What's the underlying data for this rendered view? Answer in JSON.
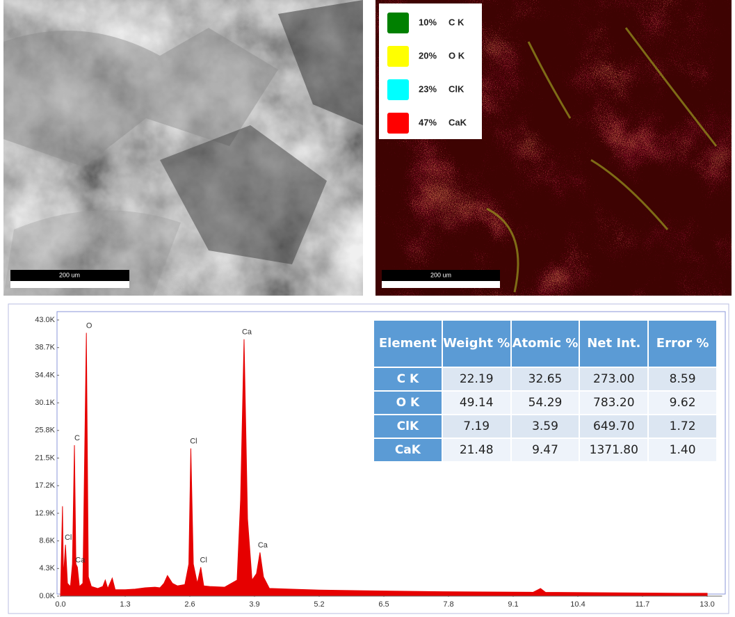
{
  "sem_image": {
    "scale_bar": "200 um"
  },
  "eds_map": {
    "scale_bar": "200 um",
    "legend": [
      {
        "percent": "10%",
        "element": "C K",
        "color": "#008000"
      },
      {
        "percent": "20%",
        "element": "O K",
        "color": "#ffff00"
      },
      {
        "percent": "23%",
        "element": "ClK",
        "color": "#00ffff"
      },
      {
        "percent": "47%",
        "element": "CaK",
        "color": "#ff0000"
      }
    ]
  },
  "chart_data": {
    "type": "area",
    "x": [
      0.0,
      0.04,
      0.06,
      0.1,
      0.14,
      0.2,
      0.24,
      0.28,
      0.31,
      0.34,
      0.38,
      0.45,
      0.52,
      0.56,
      0.62,
      0.75,
      0.85,
      0.9,
      0.95,
      1.04,
      1.1,
      1.3,
      1.5,
      1.7,
      1.9,
      2.0,
      2.08,
      2.15,
      2.25,
      2.35,
      2.5,
      2.58,
      2.62,
      2.67,
      2.75,
      2.82,
      2.88,
      3.0,
      3.3,
      3.55,
      3.62,
      3.69,
      3.76,
      3.85,
      3.94,
      4.01,
      4.08,
      4.2,
      4.6,
      5.2,
      6.0,
      6.5,
      7.5,
      8.5,
      9.5,
      9.65,
      9.75,
      10.5,
      11.5,
      12.5,
      13.0
    ],
    "values": [
      0,
      14000,
      3000,
      8000,
      2000,
      1500,
      5000,
      23500,
      5000,
      4500,
      1500,
      2000,
      41000,
      3000,
      1500,
      1200,
      1500,
      2500,
      1200,
      2800,
      1000,
      1000,
      1100,
      1300,
      1400,
      1300,
      2000,
      3200,
      2000,
      1600,
      1800,
      5000,
      23000,
      5000,
      2000,
      4500,
      1600,
      1500,
      1400,
      2500,
      15000,
      40000,
      12000,
      2500,
      3500,
      6800,
      3000,
      1200,
      1100,
      950,
      850,
      800,
      700,
      650,
      600,
      1200,
      600,
      550,
      500,
      450,
      450
    ],
    "color": "#e60000",
    "xlim": [
      0,
      13.3
    ],
    "ylim": [
      0,
      43000
    ],
    "xticks": [
      {
        "value": 0,
        "label": "0.0"
      },
      1.3,
      2.6,
      3.9,
      5.2,
      6.5,
      7.8,
      9.1,
      10.4,
      11.7,
      {
        "value": 13,
        "label": "13.0"
      }
    ],
    "yticks": [
      {
        "value": 0,
        "label": "0.0K"
      },
      {
        "value": 4300,
        "label": "4.3K"
      },
      {
        "value": 8600,
        "label": "8.6K"
      },
      {
        "value": 12900,
        "label": "12.9K"
      },
      {
        "value": 17200,
        "label": "17.2K"
      },
      {
        "value": 21500,
        "label": "21.5K"
      },
      {
        "value": 25800,
        "label": "25.8K"
      },
      {
        "value": 30100,
        "label": "30.1K"
      },
      {
        "value": 34400,
        "label": "34.4K"
      },
      {
        "value": 38700,
        "label": "38.7K"
      },
      {
        "value": 43000,
        "label": "43.0K"
      }
    ],
    "annotations": [
      {
        "text": "Cl",
        "x": 0.1,
        "y": 8000
      },
      {
        "text": "C",
        "x": 0.28,
        "y": 23500
      },
      {
        "text": "Ca",
        "x": 0.34,
        "y": 4500
      },
      {
        "text": "O",
        "x": 0.52,
        "y": 41000
      },
      {
        "text": "Cl",
        "x": 2.62,
        "y": 23000
      },
      {
        "text": "Cl",
        "x": 2.82,
        "y": 4500
      },
      {
        "text": "Ca",
        "x": 3.69,
        "y": 40000
      },
      {
        "text": "Ca",
        "x": 4.01,
        "y": 6800
      }
    ]
  },
  "table": {
    "header": [
      "Element",
      "Weight %",
      "Atomic %",
      "Net Int.",
      "Error %"
    ],
    "rows": [
      [
        "C K",
        "22.19",
        "32.65",
        "273.00",
        "8.59"
      ],
      [
        "O K",
        "49.14",
        "54.29",
        "783.20",
        "9.62"
      ],
      [
        "ClK",
        "7.19",
        "3.59",
        "649.70",
        "1.72"
      ],
      [
        "CaK",
        "21.48",
        "9.47",
        "1371.80",
        "1.40"
      ]
    ]
  }
}
